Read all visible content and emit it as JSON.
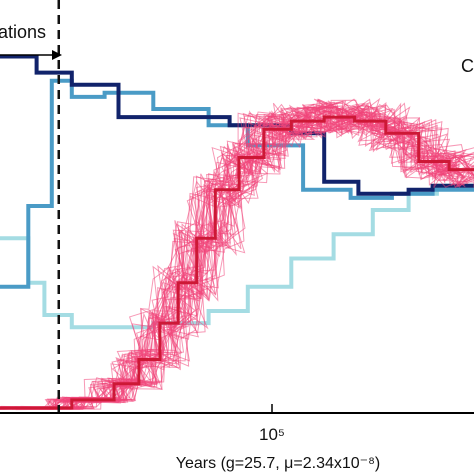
{
  "chart_data": {
    "type": "line",
    "xscale": "log",
    "xlim": [
      13000,
      420000
    ],
    "ylim": [
      0,
      1
    ],
    "xlabel": "Years (g=25.7, μ=2.34x10⁻⁸)",
    "xtick_label": "10⁵",
    "xtick_value": 100000,
    "top_annotation": "ations",
    "right_annotation": "C",
    "dashed_line_x": 20000,
    "colors": {
      "dark_navy": "#11236b",
      "steel_blue": "#4a9bc6",
      "light_blue": "#a4dce3",
      "pink": "#f0457a",
      "dark_red": "#cd1836",
      "dashed": "#111111"
    },
    "series": [
      {
        "color_key": "dark_navy",
        "x": [
          13000,
          17000,
          17000,
          22000,
          22000,
          31000,
          31000,
          70000,
          70000,
          110000,
          110000,
          140000,
          140000,
          180000,
          180000,
          260000,
          260000,
          310000,
          310000,
          420000
        ],
        "y": [
          0.88,
          0.88,
          0.84,
          0.84,
          0.81,
          0.81,
          0.73,
          0.73,
          0.71,
          0.71,
          0.69,
          0.69,
          0.57,
          0.57,
          0.54,
          0.54,
          0.55,
          0.55,
          0.56,
          0.56
        ]
      },
      {
        "color_key": "steel_blue",
        "x": [
          13000,
          16000,
          16000,
          19000,
          19000,
          22000,
          22000,
          28000,
          28000,
          40000,
          40000,
          60000,
          60000,
          80000,
          80000,
          120000,
          120000,
          170000,
          170000,
          230000,
          230000,
          310000,
          310000,
          420000
        ],
        "y": [
          0.31,
          0.31,
          0.51,
          0.51,
          0.82,
          0.82,
          0.78,
          0.78,
          0.79,
          0.79,
          0.75,
          0.75,
          0.71,
          0.71,
          0.66,
          0.66,
          0.55,
          0.55,
          0.53,
          0.53,
          0.54,
          0.54,
          0.55,
          0.55
        ]
      },
      {
        "color_key": "light_blue",
        "x": [
          13000,
          16000,
          16000,
          18000,
          18000,
          22000,
          22000,
          40000,
          40000,
          60000,
          60000,
          80000,
          80000,
          110000,
          110000,
          150000,
          150000,
          200000,
          200000,
          260000,
          260000,
          320000,
          320000,
          420000
        ],
        "y": [
          0.43,
          0.43,
          0.32,
          0.32,
          0.24,
          0.24,
          0.21,
          0.21,
          0.22,
          0.22,
          0.25,
          0.25,
          0.31,
          0.31,
          0.38,
          0.38,
          0.44,
          0.44,
          0.5,
          0.5,
          0.54,
          0.54,
          0.56,
          0.56
        ]
      },
      {
        "color_key": "dark_red",
        "x": [
          13000,
          22000,
          22000,
          30000,
          30000,
          36000,
          36000,
          42000,
          42000,
          48000,
          48000,
          55000,
          55000,
          63000,
          63000,
          75000,
          75000,
          90000,
          90000,
          110000,
          110000,
          140000,
          140000,
          175000,
          175000,
          220000,
          220000,
          280000,
          280000,
          350000,
          350000,
          420000
        ],
        "y": [
          0.01,
          0.01,
          0.03,
          0.03,
          0.07,
          0.07,
          0.13,
          0.13,
          0.22,
          0.22,
          0.32,
          0.32,
          0.43,
          0.43,
          0.55,
          0.55,
          0.63,
          0.63,
          0.7,
          0.7,
          0.72,
          0.72,
          0.73,
          0.73,
          0.72,
          0.72,
          0.69,
          0.69,
          0.62,
          0.62,
          0.6,
          0.6
        ]
      }
    ]
  }
}
